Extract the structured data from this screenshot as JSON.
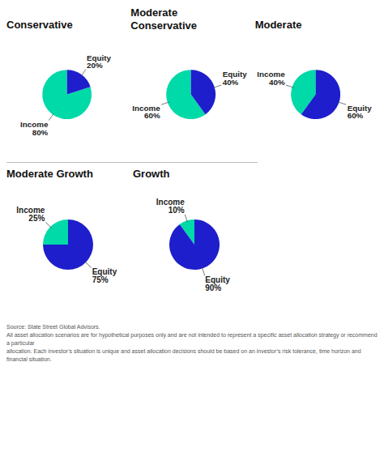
{
  "chart_data": [
    {
      "type": "pie",
      "title": "Conservative",
      "categories": [
        "Income",
        "Equity"
      ],
      "values": [
        80,
        20
      ],
      "value_labels": [
        "80%",
        "20%"
      ],
      "colors": [
        "#00D9A8",
        "#1E1ECC"
      ],
      "data_labels": true
    },
    {
      "type": "pie",
      "title": "Moderate\nConservative",
      "categories": [
        "Income",
        "Equity"
      ],
      "values": [
        60,
        40
      ],
      "value_labels": [
        "60%",
        "40%"
      ],
      "colors": [
        "#00D9A8",
        "#1E1ECC"
      ],
      "data_labels": true
    },
    {
      "type": "pie",
      "title": "Moderate",
      "categories": [
        "Income",
        "Equity"
      ],
      "values": [
        40,
        60
      ],
      "value_labels": [
        "40%",
        "60%"
      ],
      "colors": [
        "#00D9A8",
        "#1E1ECC"
      ],
      "data_labels": true
    },
    {
      "type": "pie",
      "title": "Moderate Growth",
      "categories": [
        "Income",
        "Equity"
      ],
      "values": [
        25,
        75
      ],
      "value_labels": [
        "25%",
        "75%"
      ],
      "colors": [
        "#00D9A8",
        "#1E1ECC"
      ],
      "data_labels": true
    },
    {
      "type": "pie",
      "title": "Growth",
      "categories": [
        "Income",
        "Equity"
      ],
      "values": [
        10,
        90
      ],
      "value_labels": [
        "10%",
        "90%"
      ],
      "colors": [
        "#00D9A8",
        "#1E1ECC"
      ],
      "data_labels": true,
      "annotations": [
        "Source: State Street Global Advisors.\nAll asset allocation scenarios are for hypothetical purposes only and are not intended to represent a specific asset allocation strategy or recommend a particular\nallocation. Each investor’s situation is unique and asset allocation decisions should be based on an investor’s risk tolerance, time horizon and financial situation."
      ]
    }
  ]
}
